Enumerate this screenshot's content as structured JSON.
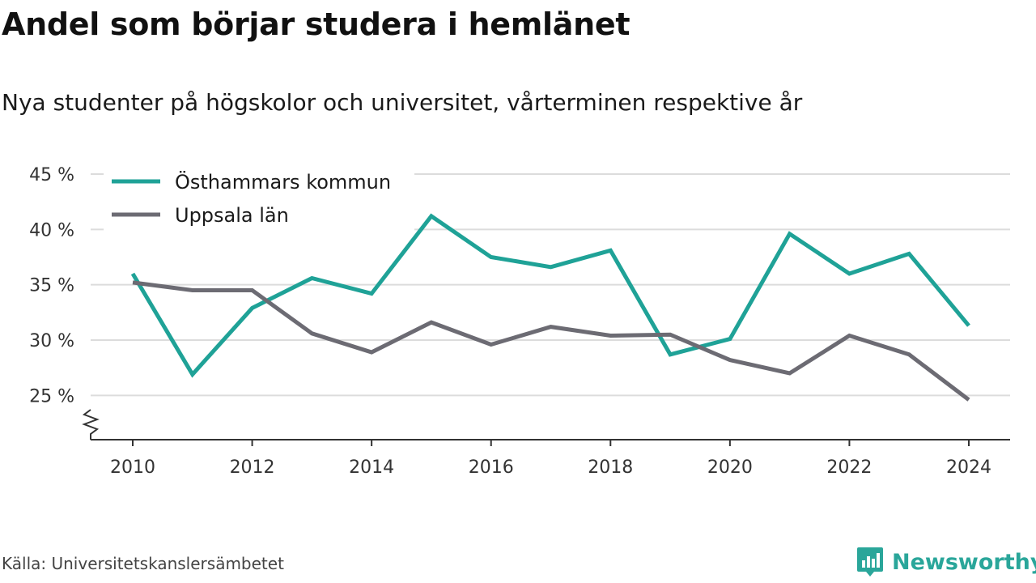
{
  "title": "Andel som börjar studera i hemlänet",
  "subtitle": "Nya studenter på högskolor och universitet, vårterminen respektive år",
  "source": "Källa: Universitetskanslersämbetet",
  "brand": {
    "name": "Newsworthy",
    "logo_icon": "bar-chart-speech-bubble-icon",
    "color": "#2aa69a"
  },
  "chart_data": {
    "type": "line",
    "title": "Andel som börjar studera i hemlänet",
    "subtitle": "Nya studenter på högskolor och universitet, vårterminen respektive år",
    "x": [
      2010,
      2011,
      2012,
      2013,
      2014,
      2015,
      2016,
      2017,
      2018,
      2019,
      2020,
      2021,
      2022,
      2023,
      2024
    ],
    "x_ticks": [
      2010,
      2012,
      2014,
      2016,
      2018,
      2020,
      2022,
      2024
    ],
    "x_tick_labels": [
      "2010",
      "2012",
      "2014",
      "2016",
      "2018",
      "2020",
      "2022",
      "2024"
    ],
    "y_ticks": [
      25,
      30,
      35,
      40,
      45
    ],
    "y_tick_labels": [
      "25 %",
      "30 %",
      "35 %",
      "40 %",
      "45 %"
    ],
    "ylim": [
      21,
      45
    ],
    "y_axis_break": true,
    "grid": true,
    "legend_position": "top-left",
    "series": [
      {
        "name": "Östhammars kommun",
        "color": "#1fa297",
        "values": [
          36.0,
          26.9,
          32.9,
          35.6,
          34.2,
          41.2,
          37.5,
          36.6,
          38.1,
          28.7,
          30.1,
          39.6,
          36.0,
          37.8,
          31.3
        ]
      },
      {
        "name": "Uppsala län",
        "color": "#6c6b73",
        "values": [
          35.2,
          34.5,
          34.5,
          30.6,
          28.9,
          31.6,
          29.6,
          31.2,
          30.4,
          30.5,
          28.2,
          27.0,
          30.4,
          28.7,
          24.6
        ]
      }
    ]
  }
}
